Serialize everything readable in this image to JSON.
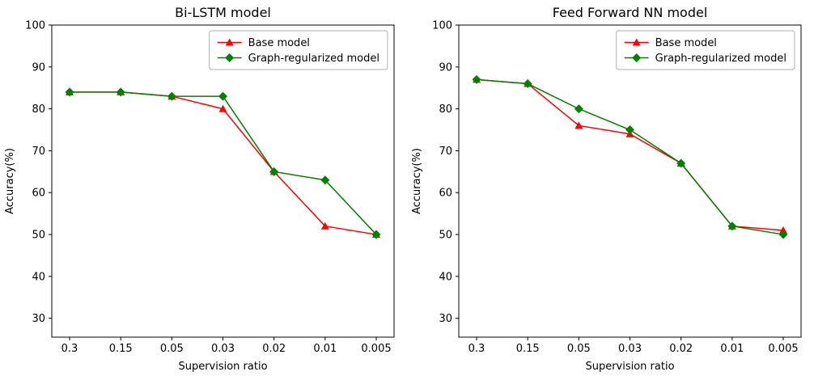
{
  "chart_data": [
    {
      "type": "line",
      "title": "Bi-LSTM model",
      "xlabel": "Supervision ratio",
      "ylabel": "Accuracy(%)",
      "categories": [
        "0.3",
        "0.15",
        "0.05",
        "0.03",
        "0.02",
        "0.01",
        "0.005"
      ],
      "yticks": [
        30,
        40,
        50,
        60,
        70,
        80,
        90,
        100
      ],
      "ylim": [
        25.5,
        100
      ],
      "grid": false,
      "legend_position": "upper right",
      "series": [
        {
          "name": "Base model",
          "color": "#ff0000",
          "marker": "triangle",
          "values": [
            84,
            84,
            83,
            80,
            65,
            52,
            50
          ]
        },
        {
          "name": "Graph-regularized model",
          "color": "#008000",
          "marker": "diamond",
          "values": [
            84,
            84,
            83,
            83,
            65,
            63,
            50
          ]
        }
      ]
    },
    {
      "type": "line",
      "title": "Feed Forward NN model",
      "xlabel": "Supervision ratio",
      "ylabel": "Accuracy(%)",
      "categories": [
        "0.3",
        "0.15",
        "0.05",
        "0.03",
        "0.02",
        "0.01",
        "0.005"
      ],
      "yticks": [
        30,
        40,
        50,
        60,
        70,
        80,
        90,
        100
      ],
      "ylim": [
        25.5,
        100
      ],
      "grid": false,
      "legend_position": "upper right",
      "series": [
        {
          "name": "Base model",
          "color": "#ff0000",
          "marker": "triangle",
          "values": [
            87,
            86,
            76,
            74,
            67,
            52,
            51
          ]
        },
        {
          "name": "Graph-regularized model",
          "color": "#008000",
          "marker": "diamond",
          "values": [
            87,
            86,
            80,
            75,
            67,
            52,
            50
          ]
        }
      ]
    }
  ]
}
